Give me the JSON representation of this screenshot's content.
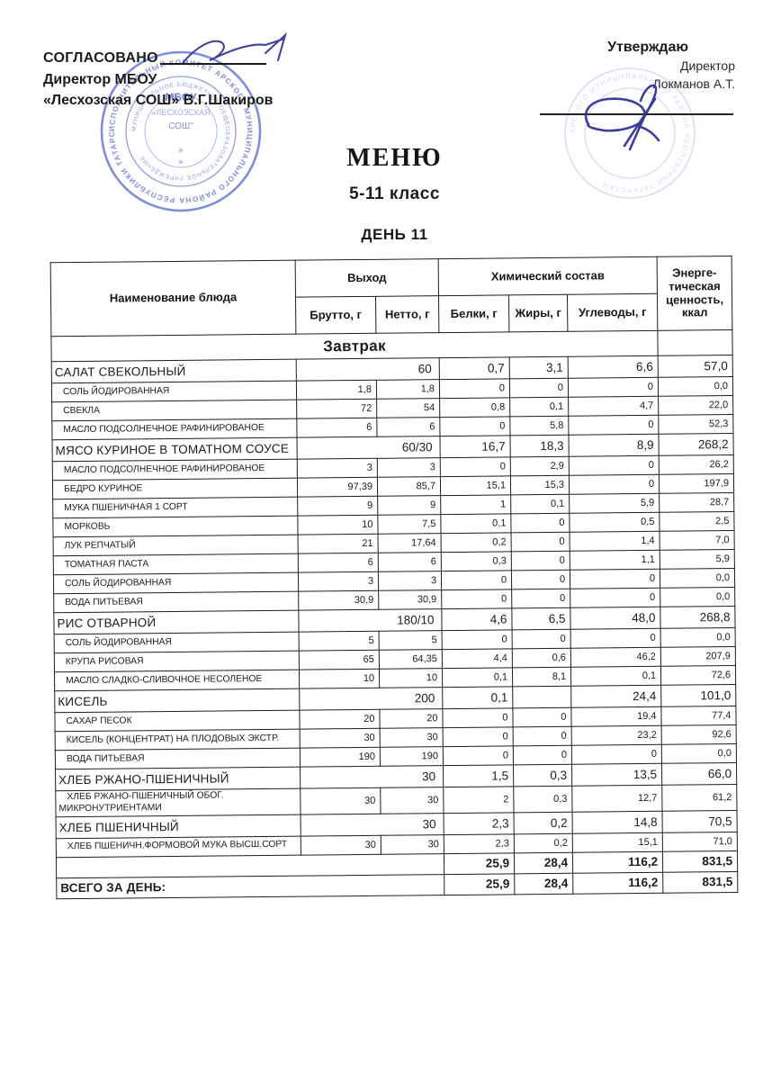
{
  "approval_left": {
    "line1": "СОГЛАСОВАНО",
    "line2": "Директор МБОУ",
    "line3": "«Лесхозская СОШ»  В.Г.Шакиров"
  },
  "approval_right": {
    "line1": "Утверждаю",
    "line2": "Директор",
    "line3": "Локманов А.Т."
  },
  "title": "МЕНЮ",
  "subtitle": "5-11 класс",
  "day": "ДЕНЬ 11",
  "stamps": {
    "left_center_line1": "МБОУ",
    "left_center_line2": "«ЛЕСХОЗСКАЯ",
    "left_center_line3": "СОШ\"",
    "left_ring_text": "ИСПОЛНИТЕЛЬНЫЙ КОМИТЕТ АРСКОГО МУНИЦИПАЛЬНОГО РАЙОНА РЕСПУБЛИКИ ТАТАРСТАН",
    "left_inner_ring_text": "МУНИЦИПАЛЬНОЕ БЮДЖЕТНОЕ ОБЩЕОБРАЗОВАТЕЛЬНОЕ УЧРЕЖДЕНИЕ",
    "right_ring_text": "АРСКОГО МУНИЦИПАЛЬНОГО РАЙОНА РЕСПУБЛИКИ ТАТАРСТАН",
    "stamp_color": "#4156c6",
    "signature_color": "#2d2d96",
    "stars": "✳"
  },
  "table": {
    "headers": {
      "name": "Наименование блюда",
      "output": "Выход",
      "brutto": "Брутто, г",
      "netto": "Нетто, г",
      "chem": "Химический состав",
      "protein": "Белки, г",
      "fat": "Жиры, г",
      "carbs": "Углеводы, г",
      "energy": "Энерге-тическая ценность, ккал"
    },
    "section": "Завтрак",
    "rows": [
      {
        "type": "dish",
        "name": "САЛАТ СВЕКОЛЬНЫЙ",
        "out": "60",
        "protein": "0,7",
        "fat": "3,1",
        "carbs": "6,6",
        "kcal": "57,0"
      },
      {
        "type": "ingredient",
        "name": "СОЛЬ  ЙОДИРОВАННАЯ",
        "brutto": "1,8",
        "netto": "1,8",
        "protein": "0",
        "fat": "0",
        "carbs": "0",
        "kcal": "0,0"
      },
      {
        "type": "ingredient",
        "name": "СВЕКЛА",
        "brutto": "72",
        "netto": "54",
        "protein": "0,8",
        "fat": "0,1",
        "carbs": "4,7",
        "kcal": "22,0"
      },
      {
        "type": "ingredient",
        "name": "МАСЛО ПОДСОЛНЕЧНОЕ РАФИНИРОВАНОЕ",
        "brutto": "6",
        "netto": "6",
        "protein": "0",
        "fat": "5,8",
        "carbs": "0",
        "kcal": "52,3"
      },
      {
        "type": "dish",
        "name": "МЯСО КУРИНОЕ В ТОМАТНОМ СОУСЕ",
        "out": "60/30",
        "protein": "16,7",
        "fat": "18,3",
        "carbs": "8,9",
        "kcal": "268,2"
      },
      {
        "type": "ingredient",
        "name": "МАСЛО ПОДСОЛНЕЧНОЕ РАФИНИРОВАНОЕ",
        "brutto": "3",
        "netto": "3",
        "protein": "0",
        "fat": "2,9",
        "carbs": "0",
        "kcal": "26,2"
      },
      {
        "type": "ingredient",
        "name": "БЕДРО КУРИНОЕ",
        "brutto": "97,39",
        "netto": "85,7",
        "protein": "15,1",
        "fat": "15,3",
        "carbs": "0",
        "kcal": "197,9"
      },
      {
        "type": "ingredient",
        "name": "МУКА ПШЕНИЧНАЯ 1 СОРТ",
        "brutto": "9",
        "netto": "9",
        "protein": "1",
        "fat": "0,1",
        "carbs": "5,9",
        "kcal": "28,7"
      },
      {
        "type": "ingredient",
        "name": "МОРКОВЬ",
        "brutto": "10",
        "netto": "7,5",
        "protein": "0,1",
        "fat": "0",
        "carbs": "0,5",
        "kcal": "2,5"
      },
      {
        "type": "ingredient",
        "name": "ЛУК РЕПЧАТЫЙ",
        "brutto": "21",
        "netto": "17,64",
        "protein": "0,2",
        "fat": "0",
        "carbs": "1,4",
        "kcal": "7,0"
      },
      {
        "type": "ingredient",
        "name": "ТОМАТНАЯ ПАСТА",
        "brutto": "6",
        "netto": "6",
        "protein": "0,3",
        "fat": "0",
        "carbs": "1,1",
        "kcal": "5,9"
      },
      {
        "type": "ingredient",
        "name": "СОЛЬ  ЙОДИРОВАННАЯ",
        "brutto": "3",
        "netto": "3",
        "protein": "0",
        "fat": "0",
        "carbs": "0",
        "kcal": "0,0"
      },
      {
        "type": "ingredient",
        "name": "ВОДА ПИТЬЕВАЯ",
        "brutto": "30,9",
        "netto": "30,9",
        "protein": "0",
        "fat": "0",
        "carbs": "0",
        "kcal": "0,0"
      },
      {
        "type": "dish",
        "name": "РИС ОТВАРНОЙ",
        "out": "180/10",
        "protein": "4,6",
        "fat": "6,5",
        "carbs": "48,0",
        "kcal": "268,8"
      },
      {
        "type": "ingredient",
        "name": "СОЛЬ  ЙОДИРОВАННАЯ",
        "brutto": "5",
        "netto": "5",
        "protein": "0",
        "fat": "0",
        "carbs": "0",
        "kcal": "0,0"
      },
      {
        "type": "ingredient",
        "name": "КРУПА РИСОВАЯ",
        "brutto": "65",
        "netto": "64,35",
        "protein": "4,4",
        "fat": "0,6",
        "carbs": "46,2",
        "kcal": "207,9"
      },
      {
        "type": "ingredient",
        "name": "МАСЛО СЛАДКО-СЛИВОЧНОЕ НЕСОЛЕНОЕ",
        "brutto": "10",
        "netto": "10",
        "protein": "0,1",
        "fat": "8,1",
        "carbs": "0,1",
        "kcal": "72,6"
      },
      {
        "type": "dish",
        "name": "КИСЕЛЬ",
        "out": "200",
        "protein": "0,1",
        "fat": "",
        "carbs": "24,4",
        "kcal": "101,0"
      },
      {
        "type": "ingredient",
        "name": "САХАР ПЕСОК",
        "brutto": "20",
        "netto": "20",
        "protein": "0",
        "fat": "0",
        "carbs": "19,4",
        "kcal": "77,4"
      },
      {
        "type": "ingredient",
        "name": "КИСЕЛЬ (КОНЦЕНТРАТ) НА ПЛОДОВЫХ ЭКСТР.",
        "brutto": "30",
        "netto": "30",
        "protein": "0",
        "fat": "0",
        "carbs": "23,2",
        "kcal": "92,6"
      },
      {
        "type": "ingredient",
        "name": "ВОДА ПИТЬЕВАЯ",
        "brutto": "190",
        "netto": "190",
        "protein": "0",
        "fat": "0",
        "carbs": "0",
        "kcal": "0,0"
      },
      {
        "type": "dish",
        "name": "ХЛЕБ РЖАНО-ПШЕНИЧНЫЙ",
        "out": "30",
        "protein": "1,5",
        "fat": "0,3",
        "carbs": "13,5",
        "kcal": "66,0"
      },
      {
        "type": "ingredient",
        "name": "ХЛЕБ РЖАНО-ПШЕНИЧНЫЙ ОБОГ. МИКРОНУТРИЕНТАМИ",
        "brutto": "30",
        "netto": "30",
        "protein": "2",
        "fat": "0,3",
        "carbs": "12,7",
        "kcal": "61,2"
      },
      {
        "type": "dish",
        "name": "ХЛЕБ ПШЕНИЧНЫЙ",
        "out": "30",
        "protein": "2,3",
        "fat": "0,2",
        "carbs": "14,8",
        "kcal": "70,5"
      },
      {
        "type": "ingredient",
        "name": "ХЛЕБ ПШЕНИЧН.ФОРМОВОЙ МУКА ВЫСШ.СОРТ",
        "brutto": "30",
        "netto": "30",
        "protein": "2,3",
        "fat": "0,2",
        "carbs": "15,1",
        "kcal": "71,0"
      },
      {
        "type": "subtotal",
        "name": "",
        "protein": "25,9",
        "fat": "28,4",
        "carbs": "116,2",
        "kcal": "831,5"
      },
      {
        "type": "total",
        "name": "ВСЕГО ЗА ДЕНЬ:",
        "protein": "25,9",
        "fat": "28,4",
        "carbs": "116,2",
        "kcal": "831,5"
      }
    ]
  }
}
